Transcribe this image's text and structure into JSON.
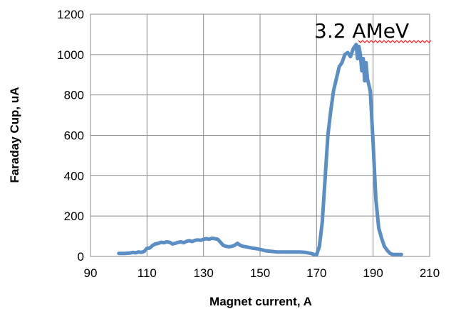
{
  "chart_data": {
    "type": "line",
    "xlabel": "Magnet current, A",
    "ylabel": "Faraday Cup, uA",
    "xlim": [
      90,
      210
    ],
    "ylim": [
      0,
      1200
    ],
    "x_ticks": [
      90,
      110,
      130,
      150,
      170,
      190,
      210
    ],
    "y_ticks": [
      0,
      200,
      400,
      600,
      800,
      1000,
      1200
    ],
    "grid": true,
    "annotation": "3.2 AMeV",
    "line_color": "#5b8ec4",
    "series": [
      {
        "x": [
          100,
          102,
          104,
          105,
          106,
          107,
          108,
          109,
          110,
          111,
          112,
          113,
          114,
          115,
          116,
          117,
          118,
          119,
          120,
          121,
          122,
          123,
          124,
          125,
          126,
          127,
          128,
          129,
          130,
          131,
          132,
          133,
          134,
          135,
          136,
          137,
          138,
          139,
          140,
          141,
          142,
          143,
          144,
          145,
          146,
          147,
          148,
          150,
          152,
          154,
          156,
          158,
          160,
          162,
          164,
          166,
          168,
          169,
          170,
          171,
          172,
          173,
          174,
          175,
          176,
          177,
          178,
          179,
          180,
          181,
          182,
          183,
          184,
          184.5,
          185,
          185.5,
          186,
          186.5,
          187,
          187.5,
          188,
          189,
          190,
          191,
          192,
          193,
          194,
          195,
          196,
          197,
          198,
          199,
          200
        ],
        "y": [
          15,
          15,
          17,
          20,
          18,
          22,
          20,
          25,
          40,
          42,
          55,
          62,
          65,
          70,
          68,
          72,
          70,
          62,
          65,
          70,
          72,
          68,
          75,
          78,
          74,
          80,
          82,
          80,
          85,
          88,
          85,
          90,
          88,
          85,
          70,
          55,
          50,
          48,
          50,
          55,
          65,
          55,
          50,
          48,
          45,
          42,
          40,
          35,
          28,
          25,
          22,
          22,
          22,
          22,
          22,
          20,
          15,
          10,
          8,
          50,
          170,
          380,
          600,
          720,
          820,
          880,
          940,
          960,
          1000,
          1010,
          990,
          1030,
          1050,
          980,
          1040,
          1000,
          920,
          980,
          870,
          960,
          880,
          820,
          560,
          280,
          140,
          90,
          50,
          30,
          15,
          10,
          10,
          10,
          10
        ]
      }
    ]
  }
}
